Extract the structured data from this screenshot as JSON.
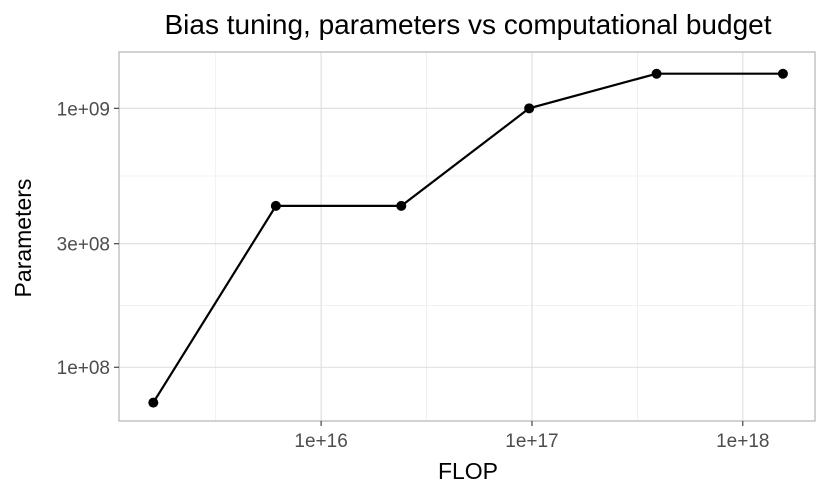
{
  "chart_data": {
    "type": "line",
    "title": "Bias tuning, parameters vs computational budget",
    "xlabel": "FLOP",
    "ylabel": "Parameters",
    "x_scale": "log",
    "y_scale": "log",
    "xlim": [
      1100000000000000.0,
      2.2e+18
    ],
    "ylim": [
      62000000.0,
      1650000000.0
    ],
    "x_ticks": [
      {
        "value": 1e+16,
        "label": "1e+16"
      },
      {
        "value": 1e+17,
        "label": "1e+17"
      },
      {
        "value": 1e+18,
        "label": "1e+18"
      }
    ],
    "y_ticks": [
      {
        "value": 100000000.0,
        "label": "1e+08"
      },
      {
        "value": 300000000.0,
        "label": "3e+08"
      },
      {
        "value": 1000000000.0,
        "label": "1e+09"
      }
    ],
    "grid": true,
    "series": [
      {
        "x": [
          1600000000000000.0,
          6100000000000000.0,
          2.4e+16,
          9.7e+16,
          3.9e+17,
          1.55e+18
        ],
        "y": [
          73000000.0,
          420000000.0,
          420000000.0,
          1000000000.0,
          1360000000.0,
          1360000000.0
        ]
      }
    ]
  }
}
